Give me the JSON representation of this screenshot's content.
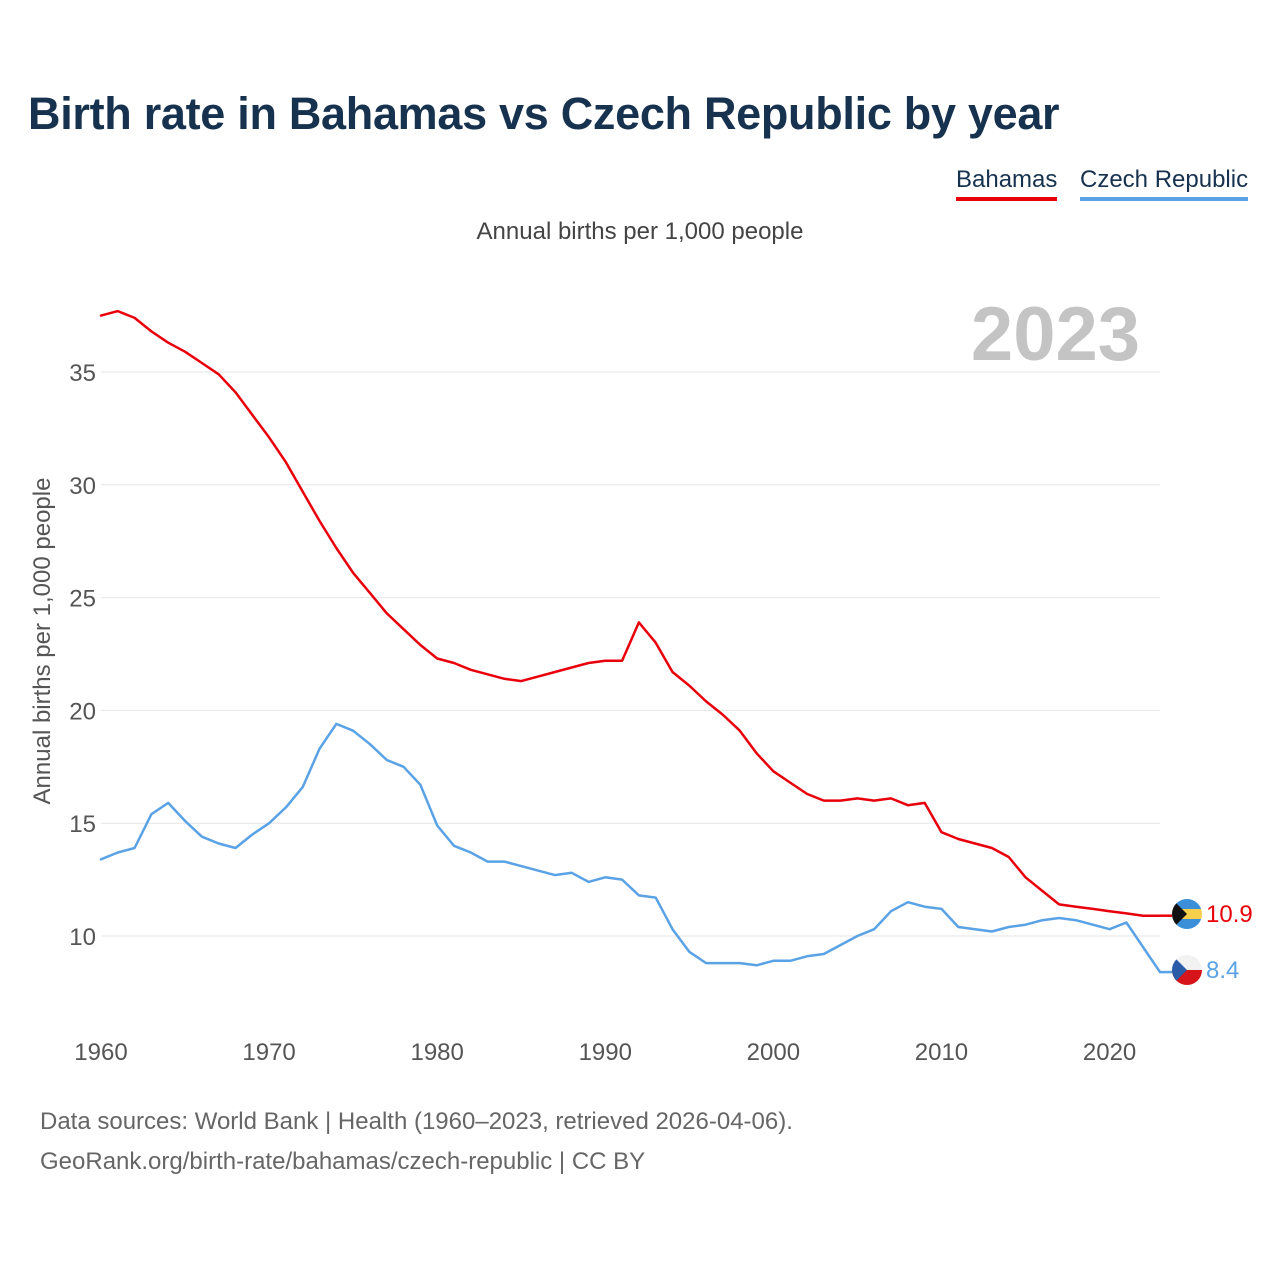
{
  "chart_data": {
    "type": "line",
    "title": "Birth rate in Bahamas vs Czech Republic by year",
    "subtitle": "Annual births per 1,000 people",
    "ylabel": "Annual births per 1,000 people",
    "xlabel": "",
    "year_label": "2023",
    "xlim": [
      1960,
      2023
    ],
    "ylim": [
      7,
      38
    ],
    "x_ticks": [
      1960,
      1970,
      1980,
      1990,
      2000,
      2010,
      2020
    ],
    "y_ticks": [
      10,
      15,
      20,
      25,
      30,
      35
    ],
    "grid": true,
    "legend_position": "top-right",
    "x": [
      1960,
      1961,
      1962,
      1963,
      1964,
      1965,
      1966,
      1967,
      1968,
      1969,
      1970,
      1971,
      1972,
      1973,
      1974,
      1975,
      1976,
      1977,
      1978,
      1979,
      1980,
      1981,
      1982,
      1983,
      1984,
      1985,
      1986,
      1987,
      1988,
      1989,
      1990,
      1991,
      1992,
      1993,
      1994,
      1995,
      1996,
      1997,
      1998,
      1999,
      2000,
      2001,
      2002,
      2003,
      2004,
      2005,
      2006,
      2007,
      2008,
      2009,
      2010,
      2011,
      2012,
      2013,
      2014,
      2015,
      2016,
      2017,
      2018,
      2019,
      2020,
      2021,
      2022,
      2023
    ],
    "series": [
      {
        "name": "Bahamas",
        "color": "#e8000b",
        "end_label": "10.9",
        "flag": "bahamas-flag-icon",
        "values": [
          37.5,
          37.7,
          37.4,
          36.8,
          36.3,
          35.9,
          35.4,
          34.9,
          34.1,
          33.1,
          32.1,
          31.0,
          29.7,
          28.4,
          27.2,
          26.1,
          25.2,
          24.3,
          23.6,
          22.9,
          22.3,
          22.1,
          21.8,
          21.6,
          21.4,
          21.3,
          21.5,
          21.7,
          21.9,
          22.1,
          22.2,
          22.2,
          23.9,
          23.0,
          21.7,
          21.1,
          20.4,
          19.8,
          19.1,
          18.1,
          17.3,
          16.8,
          16.3,
          16.0,
          16.0,
          16.1,
          16.0,
          16.1,
          15.8,
          15.9,
          14.6,
          14.3,
          14.1,
          13.9,
          13.5,
          12.6,
          12.0,
          11.4,
          11.3,
          11.2,
          11.1,
          11.0,
          10.9,
          10.9
        ]
      },
      {
        "name": "Czech Republic",
        "color": "#5aa2e6",
        "end_label": "8.4",
        "flag": "czech-republic-flag-icon",
        "values": [
          13.4,
          13.7,
          13.9,
          15.4,
          15.9,
          15.1,
          14.4,
          14.1,
          13.9,
          14.5,
          15.0,
          15.7,
          16.6,
          18.3,
          19.4,
          19.1,
          18.5,
          17.8,
          17.5,
          16.7,
          14.9,
          14.0,
          13.7,
          13.3,
          13.3,
          13.1,
          12.9,
          12.7,
          12.8,
          12.4,
          12.6,
          12.5,
          11.8,
          11.7,
          10.3,
          9.3,
          8.8,
          8.8,
          8.8,
          8.7,
          8.9,
          8.9,
          9.1,
          9.2,
          9.6,
          10.0,
          10.3,
          11.1,
          11.5,
          11.3,
          11.2,
          10.4,
          10.3,
          10.2,
          10.4,
          10.5,
          10.7,
          10.8,
          10.7,
          10.5,
          10.3,
          10.6,
          9.5,
          8.4
        ]
      }
    ]
  },
  "footer": {
    "source": "Data sources: World Bank | Health (1960–2023, retrieved 2026-04-06).",
    "credit": "GeoRank.org/birth-rate/bahamas/czech-republic | CC BY"
  }
}
